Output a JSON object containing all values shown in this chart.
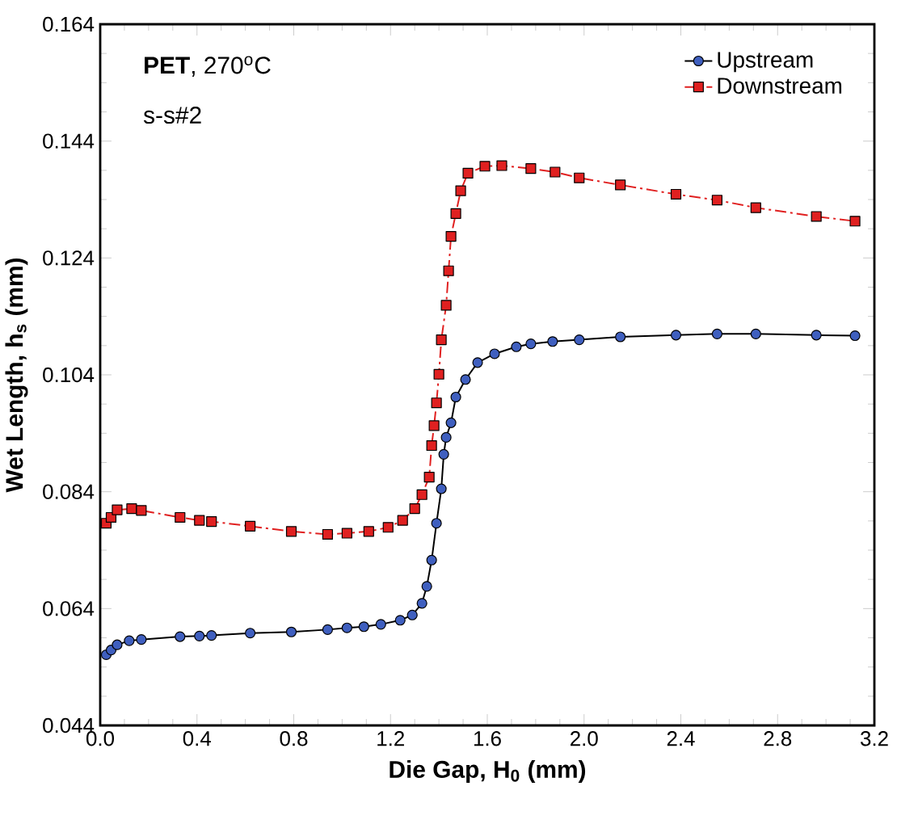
{
  "chart_data": {
    "type": "line",
    "xlabel": "Die Gap, H$_{0}$ (mm)",
    "ylabel": "Wet Length, h$_{s}$ (mm)",
    "annotations": [
      "**PET**, 270$^{o}$C",
      "s-s#2"
    ],
    "xlim": [
      0.0,
      3.2
    ],
    "xticks": [
      {
        "value": 0,
        "label": "0.0"
      },
      0.4,
      0.8,
      1.2,
      1.6,
      {
        "value": 2,
        "label": "2.0"
      },
      2.4,
      2.8,
      3.2
    ],
    "ylim": [
      0.044,
      0.164
    ],
    "yticks": [
      0.044,
      0.064,
      0.084,
      0.104,
      0.124,
      0.144,
      0.164
    ],
    "grid": false,
    "legend": "top right",
    "series": [
      {
        "name": "Upstream",
        "color": "#3f5fbf",
        "marker": "circle",
        "line_style": "solid",
        "x": [
          0.025,
          0.045,
          0.07,
          0.12,
          0.17,
          0.33,
          0.41,
          0.46,
          0.62,
          0.79,
          0.94,
          1.02,
          1.09,
          1.16,
          1.24,
          1.29,
          1.33,
          1.35,
          1.37,
          1.39,
          1.41,
          1.42,
          1.43,
          1.45,
          1.47,
          1.51,
          1.56,
          1.63,
          1.72,
          1.78,
          1.87,
          1.98,
          2.15,
          2.38,
          2.55,
          2.71,
          2.96,
          3.12
        ],
        "values": [
          0.0561,
          0.0569,
          0.0578,
          0.0585,
          0.0587,
          0.0592,
          0.0593,
          0.0594,
          0.0598,
          0.06,
          0.0604,
          0.0607,
          0.0609,
          0.0613,
          0.062,
          0.0629,
          0.0649,
          0.0678,
          0.0723,
          0.0786,
          0.0845,
          0.0904,
          0.0933,
          0.0958,
          0.1002,
          0.1032,
          0.1061,
          0.1076,
          0.1088,
          0.1093,
          0.1097,
          0.11,
          0.1105,
          0.1108,
          0.111,
          0.111,
          0.1108,
          0.1107
        ]
      },
      {
        "name": "Downstream",
        "color": "#e02020",
        "marker": "square",
        "line_style": "dashdot",
        "x": [
          0.025,
          0.045,
          0.07,
          0.13,
          0.17,
          0.33,
          0.41,
          0.46,
          0.62,
          0.79,
          0.94,
          1.02,
          1.11,
          1.19,
          1.25,
          1.3,
          1.33,
          1.36,
          1.37,
          1.38,
          1.39,
          1.4,
          1.41,
          1.43,
          1.44,
          1.45,
          1.47,
          1.49,
          1.52,
          1.59,
          1.66,
          1.78,
          1.88,
          1.98,
          2.15,
          2.38,
          2.55,
          2.71,
          2.96,
          3.12
        ],
        "values": [
          0.0786,
          0.0796,
          0.0809,
          0.0811,
          0.0808,
          0.0796,
          0.0791,
          0.0789,
          0.0781,
          0.0772,
          0.0767,
          0.0769,
          0.0772,
          0.0779,
          0.0791,
          0.0811,
          0.0835,
          0.0865,
          0.0919,
          0.0953,
          0.0992,
          0.1041,
          0.11,
          0.1159,
          0.1218,
          0.1277,
          0.1316,
          0.1355,
          0.1385,
          0.1397,
          0.1398,
          0.1393,
          0.1387,
          0.1377,
          0.1365,
          0.1349,
          0.1339,
          0.1326,
          0.1311,
          0.1303
        ]
      }
    ]
  }
}
